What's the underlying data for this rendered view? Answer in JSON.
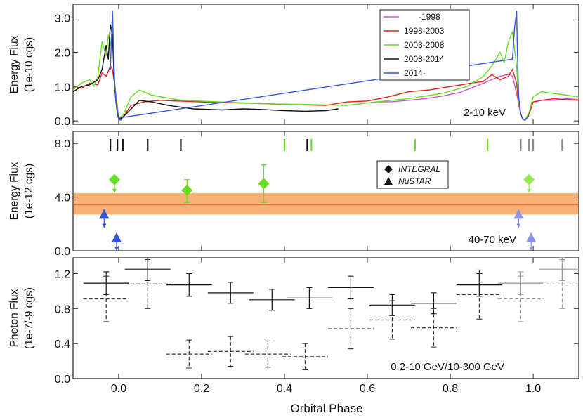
{
  "chart_data": [
    {
      "type": "line",
      "panel": "top",
      "ylabel_line1": "Energy Flux",
      "ylabel_line2": "(1e-10 cgs)",
      "band_label": "2-10 keV",
      "xlim": [
        -0.11,
        1.11
      ],
      "ylim": [
        -0.1,
        3.4
      ],
      "yticks": [
        0.0,
        1.0,
        2.0,
        3.0
      ],
      "ytick_labels": [
        "0.0",
        "1.0",
        "2.0",
        "3.0"
      ],
      "legend_position": "top-right",
      "series": [
        {
          "name": "-1998",
          "color": "#cc55cc",
          "x": [
            0.62,
            0.66,
            0.7,
            0.74,
            0.78,
            0.82,
            0.86,
            0.88,
            0.9,
            0.92,
            0.94,
            0.95,
            0.96,
            0.965,
            0.97,
            0.975,
            0.98,
            0.99,
            1.0,
            1.02,
            1.05,
            1.08,
            1.11
          ],
          "y": [
            0.55,
            0.56,
            0.6,
            0.65,
            0.72,
            0.82,
            1.0,
            1.1,
            1.2,
            1.3,
            1.35,
            1.3,
            0.8,
            0.5,
            0.2,
            0.05,
            0.02,
            0.2,
            0.55,
            0.6,
            0.6,
            0.65,
            0.62
          ]
        },
        {
          "name": "1998-2003",
          "color": "#e02020",
          "x": [
            -0.11,
            -0.09,
            -0.07,
            -0.05,
            -0.04,
            -0.03,
            -0.02,
            -0.015,
            -0.01,
            -0.005,
            0.0,
            0.01,
            0.03,
            0.06,
            0.1,
            0.2,
            0.3,
            0.4,
            0.5,
            0.55,
            0.6,
            0.65,
            0.7,
            0.75,
            0.8,
            0.85,
            0.88,
            0.9,
            0.92,
            0.94,
            0.95,
            0.96,
            0.965,
            0.97,
            0.975,
            0.98,
            0.99,
            1.0,
            1.02,
            1.05,
            1.08,
            1.11
          ],
          "y": [
            1.0,
            0.95,
            1.1,
            1.05,
            1.4,
            1.3,
            1.6,
            1.5,
            1.1,
            0.6,
            0.1,
            0.1,
            0.45,
            0.55,
            0.6,
            0.55,
            0.52,
            0.48,
            0.45,
            0.55,
            0.58,
            0.7,
            0.85,
            0.9,
            1.0,
            1.1,
            1.15,
            1.35,
            1.2,
            1.3,
            1.5,
            1.1,
            0.5,
            0.2,
            0.05,
            0.02,
            0.2,
            0.55,
            0.6,
            0.65,
            0.62,
            0.6
          ]
        },
        {
          "name": "2003-2008",
          "color": "#66dd22",
          "x": [
            -0.11,
            -0.09,
            -0.07,
            -0.06,
            -0.05,
            -0.04,
            -0.03,
            -0.025,
            -0.02,
            -0.015,
            -0.01,
            -0.005,
            0.0,
            0.01,
            0.03,
            0.05,
            0.08,
            0.15,
            0.25,
            0.35,
            0.45,
            0.55,
            0.62,
            0.7,
            0.78,
            0.84,
            0.88,
            0.9,
            0.92,
            0.93,
            0.94,
            0.95,
            0.96,
            0.965,
            0.97,
            0.975,
            0.98,
            0.99,
            1.0,
            1.02,
            1.05,
            1.08,
            1.11
          ],
          "y": [
            0.9,
            1.1,
            1.2,
            1.0,
            1.3,
            2.3,
            1.9,
            2.5,
            2.2,
            2.7,
            1.2,
            0.5,
            0.1,
            0.15,
            0.7,
            0.9,
            0.75,
            0.6,
            0.55,
            0.5,
            0.48,
            0.45,
            0.55,
            0.65,
            0.8,
            1.0,
            1.3,
            1.6,
            2.0,
            1.7,
            2.3,
            2.6,
            1.6,
            0.6,
            0.2,
            0.05,
            0.02,
            0.25,
            0.7,
            0.85,
            0.8,
            0.75,
            0.7
          ]
        },
        {
          "name": "2008-2014",
          "color": "#111111",
          "x": [
            -0.11,
            -0.09,
            -0.07,
            -0.05,
            -0.04,
            -0.03,
            -0.025,
            -0.02,
            -0.015,
            -0.01,
            -0.005,
            0.0,
            0.01,
            0.03,
            0.05,
            0.08,
            0.12,
            0.18,
            0.25,
            0.3,
            0.35,
            0.4,
            0.45,
            0.5,
            0.53
          ],
          "y": [
            0.85,
            1.0,
            1.05,
            1.2,
            1.5,
            2.2,
            1.8,
            2.8,
            2.5,
            1.0,
            0.4,
            0.05,
            0.1,
            0.35,
            0.6,
            0.55,
            0.45,
            0.35,
            0.32,
            0.35,
            0.33,
            0.3,
            0.28,
            0.3,
            0.35
          ]
        },
        {
          "name": "2014-",
          "color": "#3355dd",
          "x": [
            -0.02,
            -0.015,
            -0.01,
            -0.007,
            -0.003,
            0.0,
            0.005,
            0.01,
            0.95,
            0.955,
            0.96,
            0.962,
            0.965,
            0.97,
            0.975,
            0.98,
            0.99
          ],
          "y": [
            1.5,
            3.2,
            1.2,
            0.6,
            0.2,
            0.05,
            0.02,
            0.1,
            1.8,
            2.7,
            3.2,
            2.0,
            0.7,
            0.2,
            0.05,
            0.02,
            0.15
          ]
        }
      ],
      "legend": [
        "-1998",
        "1998-2003",
        "2003-2008",
        "2008-2014",
        "2014-"
      ]
    },
    {
      "type": "scatter",
      "panel": "middle",
      "ylabel_line1": "Energy Flux",
      "ylabel_line2": "(1e-12 cgs)",
      "band_label": "40-70 keV",
      "xlim": [
        -0.11,
        1.11
      ],
      "ylim": [
        0.0,
        8.9
      ],
      "yticks": [
        0.0,
        4.0,
        8.0
      ],
      "ytick_labels": [
        "0.0",
        "4.0",
        "8.0"
      ],
      "legend_position": "top-right",
      "legend": [
        "INTEGRAL",
        "NuSTAR"
      ],
      "band": {
        "center": 3.45,
        "low": 2.7,
        "high": 4.3,
        "color": "#f7a35c",
        "line_color": "#e0502a"
      },
      "observation_ticks": [
        {
          "x": -0.02,
          "color": "#111111"
        },
        {
          "x": -0.003,
          "color": "#111111"
        },
        {
          "x": 0.01,
          "color": "#111111"
        },
        {
          "x": 0.07,
          "color": "#111111"
        },
        {
          "x": 0.15,
          "color": "#111111"
        },
        {
          "x": 0.4,
          "color": "#66dd22"
        },
        {
          "x": 0.455,
          "color": "#111111"
        },
        {
          "x": 0.465,
          "color": "#66dd22"
        },
        {
          "x": 0.715,
          "color": "#66dd22"
        },
        {
          "x": 0.89,
          "color": "#66dd22"
        },
        {
          "x": 0.97,
          "color": "#888888"
        },
        {
          "x": 0.99,
          "color": "#888888"
        },
        {
          "x": 1.0,
          "color": "#888888"
        },
        {
          "x": 1.07,
          "color": "#888888"
        }
      ],
      "integral": [
        {
          "x": -0.01,
          "y": 5.3,
          "upper_limit": true,
          "err_low": 1.0,
          "err_high": 0.0,
          "xerr": 0.0
        },
        {
          "x": 0.165,
          "y": 4.5,
          "upper_limit": false,
          "err_low": 0.9,
          "err_high": 0.8,
          "xerr": 0.0
        },
        {
          "x": 0.35,
          "y": 5.0,
          "upper_limit": false,
          "err_low": 1.4,
          "err_high": 1.4,
          "xerr": 0.0
        },
        {
          "x": 0.99,
          "y": 5.3,
          "upper_limit": true,
          "err_low": 1.0,
          "err_high": 0.0,
          "xerr": 0.0,
          "faded": true
        }
      ],
      "nustar": [
        {
          "x": -0.035,
          "y": 2.7,
          "upper_limit": true,
          "err_low": 1.0,
          "xerr": 0.0
        },
        {
          "x": -0.005,
          "y": 0.95,
          "upper_limit": true,
          "err_low": 1.0,
          "xerr": 0.0
        },
        {
          "x": 0.965,
          "y": 2.7,
          "upper_limit": true,
          "err_low": 1.0,
          "xerr": 0.0,
          "faded": true
        },
        {
          "x": 0.995,
          "y": 0.95,
          "upper_limit": true,
          "err_low": 1.0,
          "xerr": 0.0,
          "faded": true
        }
      ]
    },
    {
      "type": "scatter",
      "panel": "bottom",
      "ylabel_line1": "Photon Flux",
      "ylabel_line2": "(1e-7/-9 cgs)",
      "band_label": "0.2-10 GeV/10-300 GeV",
      "xlabel": "Orbital Phase",
      "xlim": [
        -0.11,
        1.11
      ],
      "ylim": [
        0.0,
        1.38
      ],
      "yticks": [
        0.0,
        0.4,
        0.8,
        1.2
      ],
      "ytick_labels": [
        "0.0",
        "0.4",
        "0.8",
        "1.2"
      ],
      "xticks": [
        0.0,
        0.2,
        0.4,
        0.6,
        0.8,
        1.0
      ],
      "xtick_labels": [
        "0.0",
        "0.2",
        "0.4",
        "0.6",
        "0.8",
        "1.0"
      ],
      "series": [
        {
          "name": "0.2-10 GeV",
          "style": "solid",
          "color": "#111111",
          "points": [
            {
              "x": -0.03,
              "y": 1.09,
              "xerr": 0.055,
              "yerr": 0.13
            },
            {
              "x": 0.07,
              "y": 1.25,
              "xerr": 0.055,
              "yerr": 0.13
            },
            {
              "x": 0.17,
              "y": 1.07,
              "xerr": 0.055,
              "yerr": 0.13
            },
            {
              "x": 0.27,
              "y": 0.98,
              "xerr": 0.055,
              "yerr": 0.12
            },
            {
              "x": 0.37,
              "y": 0.9,
              "xerr": 0.055,
              "yerr": 0.12
            },
            {
              "x": 0.46,
              "y": 0.92,
              "xerr": 0.055,
              "yerr": 0.12
            },
            {
              "x": 0.56,
              "y": 1.04,
              "xerr": 0.055,
              "yerr": 0.13
            },
            {
              "x": 0.66,
              "y": 0.84,
              "xerr": 0.055,
              "yerr": 0.12
            },
            {
              "x": 0.76,
              "y": 0.86,
              "xerr": 0.055,
              "yerr": 0.12
            },
            {
              "x": 0.87,
              "y": 1.07,
              "xerr": 0.055,
              "yerr": 0.13
            },
            {
              "x": 0.97,
              "y": 1.09,
              "xerr": 0.055,
              "yerr": 0.13,
              "faded": true
            },
            {
              "x": 1.07,
              "y": 1.25,
              "xerr": 0.055,
              "yerr": 0.13,
              "faded": true
            }
          ]
        },
        {
          "name": "10-300 GeV",
          "style": "dashed",
          "color": "#333333",
          "points": [
            {
              "x": -0.03,
              "y": 0.91,
              "xerr": 0.055,
              "yerr": 0.26
            },
            {
              "x": 0.07,
              "y": 1.08,
              "xerr": 0.055,
              "yerr": 0.28
            },
            {
              "x": 0.17,
              "y": 0.28,
              "xerr": 0.055,
              "yerr": 0.16
            },
            {
              "x": 0.27,
              "y": 0.31,
              "xerr": 0.055,
              "yerr": 0.17
            },
            {
              "x": 0.36,
              "y": 0.28,
              "xerr": 0.055,
              "yerr": 0.15
            },
            {
              "x": 0.45,
              "y": 0.25,
              "xerr": 0.055,
              "yerr": 0.15
            },
            {
              "x": 0.56,
              "y": 0.57,
              "xerr": 0.055,
              "yerr": 0.23
            },
            {
              "x": 0.66,
              "y": 0.67,
              "xerr": 0.055,
              "yerr": 0.22
            },
            {
              "x": 0.76,
              "y": 0.58,
              "xerr": 0.055,
              "yerr": 0.22
            },
            {
              "x": 0.87,
              "y": 0.96,
              "xerr": 0.055,
              "yerr": 0.28
            },
            {
              "x": 0.97,
              "y": 0.91,
              "xerr": 0.055,
              "yerr": 0.26,
              "faded": true
            },
            {
              "x": 1.07,
              "y": 1.08,
              "xerr": 0.055,
              "yerr": 0.28,
              "faded": true
            }
          ]
        }
      ]
    }
  ]
}
